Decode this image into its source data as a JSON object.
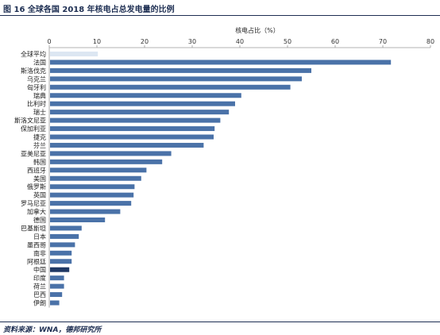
{
  "figure": {
    "title": "图 16 全球各国 2018 年核电占总发电量的比例",
    "source": "资料来源：WNA，德邦研究所"
  },
  "chart_data": {
    "type": "bar",
    "orientation": "horizontal",
    "xlabel": "核电占比（%）",
    "ylabel": "",
    "xlim": [
      0,
      80
    ],
    "ticks": [
      0,
      10,
      20,
      30,
      40,
      50,
      60,
      70,
      80
    ],
    "grid": false,
    "categories": [
      "全球平均",
      "法国",
      "斯洛伐克",
      "乌克兰",
      "匈牙利",
      "瑞典",
      "比利时",
      "瑞士",
      "斯洛文尼亚",
      "保加利亚",
      "捷克",
      "芬兰",
      "亚美尼亚",
      "韩国",
      "西班牙",
      "美国",
      "俄罗斯",
      "英国",
      "罗马尼亚",
      "加拿大",
      "德国",
      "巴基斯坦",
      "日本",
      "墨西哥",
      "南非",
      "阿根廷",
      "中国",
      "印度",
      "荷兰",
      "巴西",
      "伊朗"
    ],
    "values": [
      10.2,
      71.7,
      55.0,
      53.0,
      50.6,
      40.3,
      39.0,
      37.7,
      35.9,
      34.7,
      34.5,
      32.4,
      25.6,
      23.7,
      20.4,
      19.3,
      17.9,
      17.7,
      17.2,
      14.9,
      11.7,
      6.8,
      6.2,
      5.4,
      4.7,
      4.7,
      4.2,
      3.1,
      3.1,
      2.7,
      2.1
    ],
    "colors": {
      "default": "#4a72a8",
      "world_average": "#dce6f2",
      "highlight": "#1f3864"
    },
    "highlight_categories": [
      "全球平均",
      "中国"
    ]
  }
}
